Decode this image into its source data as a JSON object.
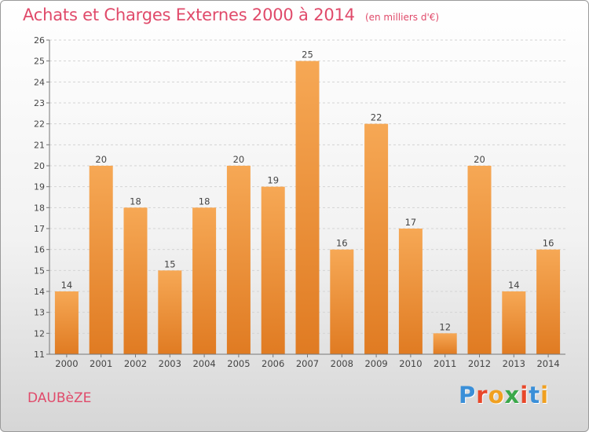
{
  "header": {
    "title": "Achats et Charges Externes 2000 à 2014",
    "subtitle": "(en milliers d'€)"
  },
  "footer": {
    "commune": "DAUBèZE",
    "brand": "Proxiti",
    "brand_colors": [
      "#3a8fd8",
      "#e8472a",
      "#f0a020",
      "#3aa84a",
      "#e8472a",
      "#3a8fd8",
      "#f0a020"
    ]
  },
  "colors": {
    "bar_top": "#f6a855",
    "bar_bottom": "#e07b22",
    "accent": "#e04a6a"
  },
  "chart_data": {
    "type": "bar",
    "categories": [
      "2000",
      "2001",
      "2002",
      "2003",
      "2004",
      "2005",
      "2006",
      "2007",
      "2008",
      "2009",
      "2010",
      "2011",
      "2012",
      "2013",
      "2014"
    ],
    "values": [
      14,
      20,
      18,
      15,
      18,
      20,
      19,
      25,
      16,
      22,
      17,
      12,
      20,
      14,
      16
    ],
    "value_labels": [
      "14",
      "20",
      "18",
      "15",
      "18",
      "20",
      "19",
      "25",
      "16",
      "22",
      "17",
      "12",
      "20",
      "14",
      "16"
    ],
    "ylim": [
      11,
      26
    ],
    "yticks": [
      "11",
      "12",
      "13",
      "14",
      "15",
      "16",
      "17",
      "18",
      "19",
      "20",
      "21",
      "22",
      "23",
      "24",
      "25",
      "26"
    ],
    "grid": true,
    "legend": "none"
  }
}
